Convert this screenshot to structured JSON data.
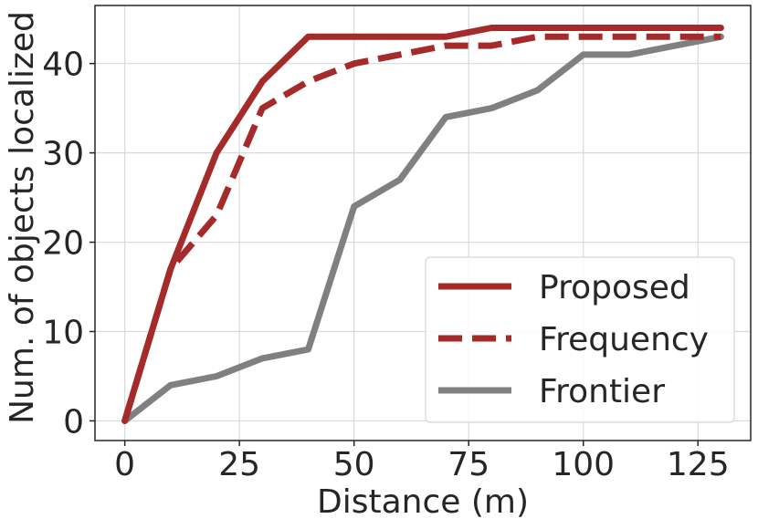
{
  "chart_data": {
    "type": "line",
    "xlabel": "Distance (m)",
    "ylabel": "Num. of objects localized",
    "xlim": [
      -6.5,
      136.5
    ],
    "ylim": [
      -2.2,
      46.5
    ],
    "xticks": [
      0,
      25,
      50,
      75,
      100,
      125
    ],
    "yticks": [
      0,
      10,
      20,
      30,
      40
    ],
    "grid": true,
    "legend_position": "lower-right",
    "series": [
      {
        "name": "Proposed",
        "color": "#a52a2a",
        "style": "solid",
        "x": [
          0,
          10,
          20,
          30,
          40,
          50,
          60,
          70,
          80,
          90,
          100,
          110,
          120,
          130
        ],
        "y": [
          0,
          17,
          30,
          38,
          43,
          43,
          43,
          43,
          44,
          44,
          44,
          44,
          44,
          44
        ]
      },
      {
        "name": "Frequency",
        "color": "#a52a2a",
        "style": "dashed",
        "x": [
          0,
          10,
          20,
          30,
          40,
          50,
          60,
          70,
          80,
          90,
          100,
          110,
          120,
          130
        ],
        "y": [
          0,
          17,
          23,
          35,
          38,
          40,
          41,
          42,
          42,
          43,
          43,
          43,
          43,
          43
        ]
      },
      {
        "name": "Frontier",
        "color": "#808080",
        "style": "solid",
        "x": [
          0,
          10,
          20,
          30,
          40,
          50,
          60,
          70,
          80,
          90,
          100,
          110,
          120,
          130
        ],
        "y": [
          0,
          4,
          5,
          7,
          8,
          24,
          27,
          34,
          35,
          37,
          41,
          41,
          42,
          43
        ]
      }
    ]
  }
}
